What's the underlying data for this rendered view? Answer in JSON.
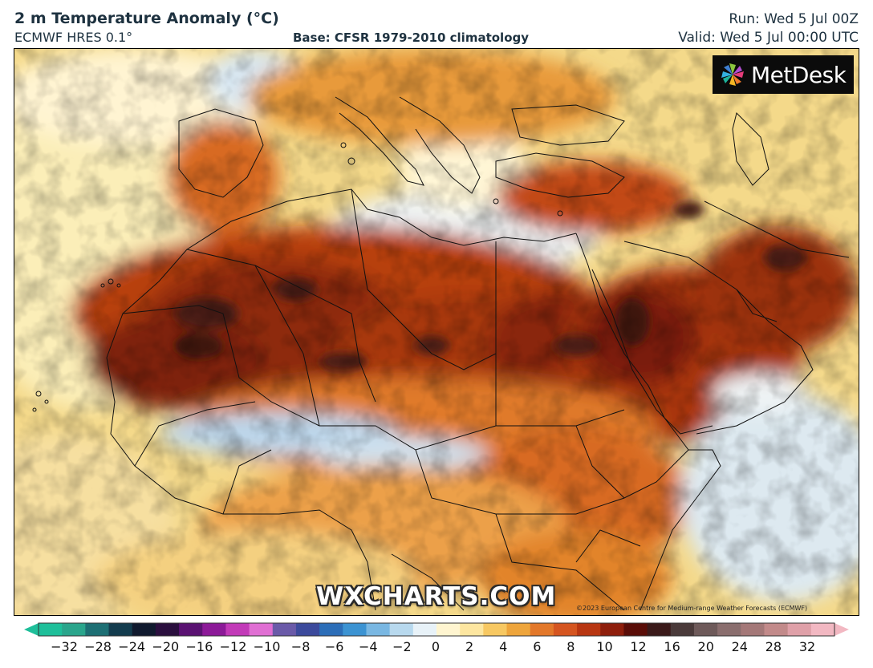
{
  "header": {
    "title": "2 m Temperature Anomaly (°C)",
    "model": "ECMWF HRES 0.1°",
    "base": "Base: CFSR 1979-2010 climatology",
    "run": "Run: Wed 5 Jul 00Z",
    "valid": "Valid: Wed 5 Jul 00:00 UTC"
  },
  "logo": {
    "text": "MetDesk",
    "icon": "pinwheel-logo-icon"
  },
  "watermark": "WXCHARTS.COM",
  "copyright": "©2023 European Centre for Medium-range Weather Forecasts (ECMWF)",
  "legend": {
    "ticks": [
      "−32",
      "−28",
      "−24",
      "−20",
      "−16",
      "−12",
      "−10",
      "−8",
      "−6",
      "−4",
      "−2",
      "0",
      "2",
      "4",
      "6",
      "8",
      "10",
      "12",
      "16",
      "20",
      "24",
      "28",
      "32"
    ],
    "colors": [
      "#1fbf9a",
      "#2aa58c",
      "#1d6f74",
      "#133c4e",
      "#101a2e",
      "#2a0f3e",
      "#5a1272",
      "#8c1a98",
      "#c23ab8",
      "#e06fd3",
      "#6a5aa8",
      "#3c4a9c",
      "#2c6eb8",
      "#3c93d2",
      "#79b7e2",
      "#b8d9ee",
      "#e8f2f8",
      "#fff5d0",
      "#fde6a0",
      "#f7c862",
      "#eea53c",
      "#e3782a",
      "#d55520",
      "#b83612",
      "#8e1e0c",
      "#5a0d08",
      "#3a1a1a",
      "#4a3a3a",
      "#6e5a5a",
      "#8a6e6e",
      "#a47878",
      "#c28a8a",
      "#dfa0a8",
      "#f2b8c2"
    ]
  },
  "colors": {
    "sea_cool": "#f6e7b4",
    "land_warm": "#e89030",
    "land_hot": "#a9300f",
    "extreme": "#4a1a12",
    "cool_anomaly": "#4a86c8",
    "border": "#111111"
  }
}
